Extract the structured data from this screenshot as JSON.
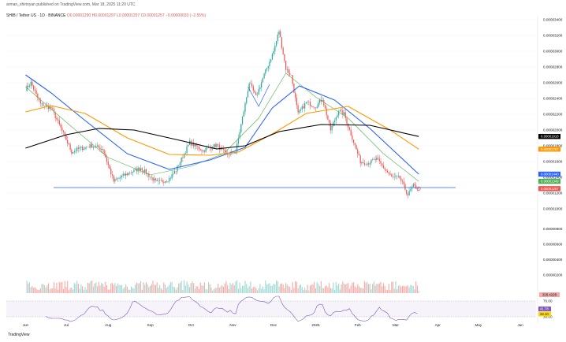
{
  "header": {
    "publish_line": "arman_shirinyan published on TradingView.com, Mar 18, 2025 11:20 UTC"
  },
  "legend": {
    "symbol_line": "SHIB / Tether US · 1D · BINANCE",
    "ohlc_line": "O0.00001290 H0.00001297 L0.00001257 C0.00001257 −0.00000033 (−2.55%)"
  },
  "branding": {
    "logo_text": "TradingView"
  },
  "colors": {
    "up": "#26a69a",
    "down": "#ef5350",
    "ma20": "#4caf50",
    "ma50": "#2962ff",
    "ma100": "#ff9800",
    "ma200": "#000000",
    "support": "#2962ff",
    "rsi": "#7e57c2"
  },
  "chart_data": {
    "type": "candlestick",
    "x_axis_labels": [
      "Jun",
      "Jul",
      "Aug",
      "Sep",
      "Oct",
      "Nov",
      "Dec",
      "2025",
      "Feb",
      "Mar",
      "Apr",
      "May",
      "Jun"
    ],
    "y_axis_labels": [
      "0.00003400",
      "0.00003200",
      "0.00003000",
      "0.00002800",
      "0.00002600",
      "0.00002400",
      "0.00002200",
      "0.00002000",
      "0.00001800",
      "0.00001600",
      "0.00001400",
      "0.00001200",
      "0.00001000"
    ],
    "ylim": [
      9.5e-06,
      3.45e-05
    ],
    "volume_axis_labels": [
      "0.00000800",
      "0.00000600",
      "0.00000400",
      "0.00000200"
    ],
    "rsi_axis_labels": [
      "70.00",
      "30.00"
    ],
    "price_badges": [
      {
        "label": "0.00001918",
        "value": 1.918e-05,
        "color": "#000000"
      },
      {
        "label": "0.00001757",
        "value": 1.757e-05,
        "color": "#ff9800"
      },
      {
        "label": "0.00001440",
        "value": 1.44e-05,
        "color": "#2962ff"
      },
      {
        "label": "0.00001349",
        "value": 1.349e-05,
        "color": "#4caf50"
      },
      {
        "label": "0.00001257",
        "value": 1.257e-05,
        "color": "#ef5350"
      }
    ],
    "volume_badge": {
      "label": "328.422B"
    },
    "rsi_badges": [
      {
        "label": "41.78",
        "color": "#7e57c2"
      },
      {
        "label": "34.10",
        "color": "#ffd600"
      }
    ],
    "support_level": 1.27e-05,
    "anchors": [
      [
        "2024-06-01",
        2.52e-05
      ],
      [
        "2024-06-05",
        2.6e-05
      ],
      [
        "2024-06-12",
        2.33e-05
      ],
      [
        "2024-06-20",
        2.28e-05
      ],
      [
        "2024-07-01",
        1.88e-05
      ],
      [
        "2024-07-05",
        1.72e-05
      ],
      [
        "2024-07-10",
        1.76e-05
      ],
      [
        "2024-07-20",
        1.8e-05
      ],
      [
        "2024-07-28",
        1.76e-05
      ],
      [
        "2024-08-05",
        1.35e-05
      ],
      [
        "2024-08-12",
        1.42e-05
      ],
      [
        "2024-08-25",
        1.52e-05
      ],
      [
        "2024-09-06",
        1.33e-05
      ],
      [
        "2024-09-15",
        1.38e-05
      ],
      [
        "2024-09-20",
        1.49e-05
      ],
      [
        "2024-09-30",
        1.84e-05
      ],
      [
        "2024-10-10",
        1.74e-05
      ],
      [
        "2024-10-20",
        1.81e-05
      ],
      [
        "2024-10-27",
        1.69e-05
      ],
      [
        "2024-11-03",
        1.72e-05
      ],
      [
        "2024-11-10",
        2.33e-05
      ],
      [
        "2024-11-13",
        2.6e-05
      ],
      [
        "2024-11-18",
        2.42e-05
      ],
      [
        "2024-11-24",
        2.7e-05
      ],
      [
        "2024-12-01",
        3e-05
      ],
      [
        "2024-12-05",
        3.26e-05
      ],
      [
        "2024-12-10",
        2.78e-05
      ],
      [
        "2024-12-14",
        2.69e-05
      ],
      [
        "2024-12-19",
        2.2e-05
      ],
      [
        "2024-12-25",
        2.35e-05
      ],
      [
        "2025-01-01",
        2.3e-05
      ],
      [
        "2025-01-06",
        2.4e-05
      ],
      [
        "2025-01-12",
        2e-05
      ],
      [
        "2025-01-18",
        2.25e-05
      ],
      [
        "2025-01-22",
        2.2e-05
      ],
      [
        "2025-02-03",
        1.6e-05
      ],
      [
        "2025-02-08",
        1.58e-05
      ],
      [
        "2025-02-15",
        1.63e-05
      ],
      [
        "2025-02-26",
        1.4e-05
      ],
      [
        "2025-03-04",
        1.39e-05
      ],
      [
        "2025-03-10",
        1.18e-05
      ],
      [
        "2025-03-14",
        1.29e-05
      ],
      [
        "2025-03-18",
        1.257e-05
      ]
    ],
    "ma_lines": [
      {
        "name": "MA 20",
        "color": "#4caf50",
        "points": [
          [
            "2024-06-01",
            2.55e-05
          ],
          [
            "2024-07-01",
            2.1e-05
          ],
          [
            "2024-08-01",
            1.65e-05
          ],
          [
            "2024-09-01",
            1.43e-05
          ],
          [
            "2024-10-01",
            1.54e-05
          ],
          [
            "2024-10-25",
            1.7e-05
          ],
          [
            "2024-11-20",
            2.15e-05
          ],
          [
            "2024-12-10",
            2.72e-05
          ],
          [
            "2025-01-01",
            2.42e-05
          ],
          [
            "2025-01-25",
            2.15e-05
          ],
          [
            "2025-02-20",
            1.7e-05
          ],
          [
            "2025-03-18",
            1.349e-05
          ]
        ]
      },
      {
        "name": "MA 50",
        "color": "#2962ff",
        "points": [
          [
            "2024-06-01",
            2.7e-05
          ],
          [
            "2024-06-20",
            2.47e-05
          ],
          [
            "2024-07-15",
            2.12e-05
          ],
          [
            "2024-08-15",
            1.7e-05
          ],
          [
            "2024-09-15",
            1.5e-05
          ],
          [
            "2024-10-15",
            1.62e-05
          ],
          [
            "2024-11-10",
            1.78e-05
          ],
          [
            "2024-11-30",
            2.28e-05
          ],
          [
            "2024-12-20",
            2.56e-05
          ],
          [
            "2025-01-15",
            2.38e-05
          ],
          [
            "2025-02-10",
            2.02e-05
          ],
          [
            "2025-03-18",
            1.44e-05
          ]
        ]
      },
      {
        "name": "MA 100",
        "color": "#ff9800",
        "points": [
          [
            "2024-06-01",
            2.23e-05
          ],
          [
            "2024-06-20",
            2.31e-05
          ],
          [
            "2024-07-15",
            2.21e-05
          ],
          [
            "2024-08-15",
            1.9e-05
          ],
          [
            "2024-09-15",
            1.69e-05
          ],
          [
            "2024-10-15",
            1.68e-05
          ],
          [
            "2024-11-05",
            1.72e-05
          ],
          [
            "2024-12-01",
            1.96e-05
          ],
          [
            "2024-12-25",
            2.21e-05
          ],
          [
            "2025-01-25",
            2.3e-05
          ],
          [
            "2025-02-25",
            2e-05
          ],
          [
            "2025-03-18",
            1.757e-05
          ]
        ]
      },
      {
        "name": "MA 200",
        "color": "#000000",
        "points": [
          [
            "2024-06-01",
            1.77e-05
          ],
          [
            "2024-07-01",
            1.94e-05
          ],
          [
            "2024-07-25",
            2.02e-05
          ],
          [
            "2024-08-20",
            2e-05
          ],
          [
            "2024-09-20",
            1.88e-05
          ],
          [
            "2024-10-20",
            1.76e-05
          ],
          [
            "2024-11-10",
            1.8e-05
          ],
          [
            "2024-12-05",
            1.98e-05
          ],
          [
            "2025-01-05",
            2.07e-05
          ],
          [
            "2025-02-10",
            2.06e-05
          ],
          [
            "2025-03-18",
            1.918e-05
          ]
        ]
      }
    ]
  }
}
